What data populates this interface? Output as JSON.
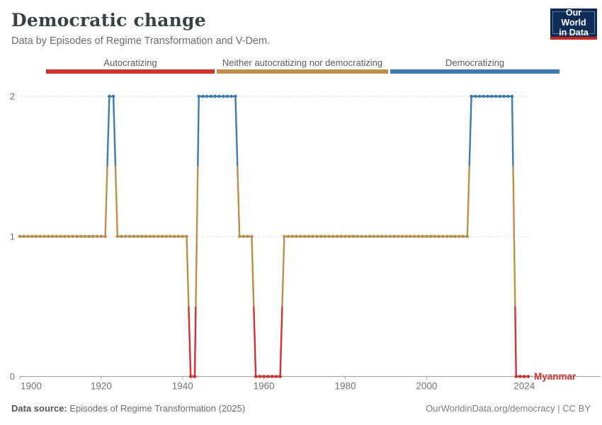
{
  "header": {
    "title": "Democratic change",
    "subtitle": "Data by Episodes of Regime Transformation and V-Dem."
  },
  "logo": {
    "line1": "Our World",
    "line2": "in Data"
  },
  "footer": {
    "source_label": "Data source:",
    "source_value": " Episodes of Regime Transformation (2025)",
    "credit": "OurWorldinData.org/democracy | CC BY"
  },
  "colors": {
    "autocratizing": "#d6302b",
    "neither": "#bd8e48",
    "democratizing": "#3a7db3",
    "gridline": "#dedede",
    "axis": "#a1a1a1",
    "tick_label": "#737373",
    "logo_bg": "#0d2d57",
    "logo_border": "#5b7aa0",
    "logo_strip": "#d0231c"
  },
  "chart_data": {
    "type": "line",
    "title": "Democratic change",
    "entity_label": "Myanmar",
    "x_range": [
      1900,
      2025
    ],
    "ylim": [
      0,
      2
    ],
    "yticks": [
      0,
      1,
      2
    ],
    "xticks": [
      1900,
      1920,
      1940,
      1960,
      1980,
      2000,
      2024
    ],
    "grid": "dashed horizontal at y=1 and y=2",
    "legend_position": "top",
    "categories": [
      {
        "value": 0,
        "label": "Autocratizing",
        "color": "#d6302b"
      },
      {
        "value": 1,
        "label": "Neither autocratizing nor democratizing",
        "color": "#bd8e48"
      },
      {
        "value": 2,
        "label": "Democratizing",
        "color": "#3a7db3"
      }
    ],
    "segments": [
      {
        "start": 1900,
        "end": 1921,
        "value": 1
      },
      {
        "start": 1922,
        "end": 1923,
        "value": 2
      },
      {
        "start": 1924,
        "end": 1941,
        "value": 1
      },
      {
        "start": 1942,
        "end": 1943,
        "value": 0
      },
      {
        "start": 1944,
        "end": 1953,
        "value": 2
      },
      {
        "start": 1954,
        "end": 1957,
        "value": 1
      },
      {
        "start": 1958,
        "end": 1964,
        "value": 0
      },
      {
        "start": 1965,
        "end": 2010,
        "value": 1
      },
      {
        "start": 2011,
        "end": 2021,
        "value": 2
      },
      {
        "start": 2022,
        "end": 2025,
        "value": 0
      }
    ]
  }
}
